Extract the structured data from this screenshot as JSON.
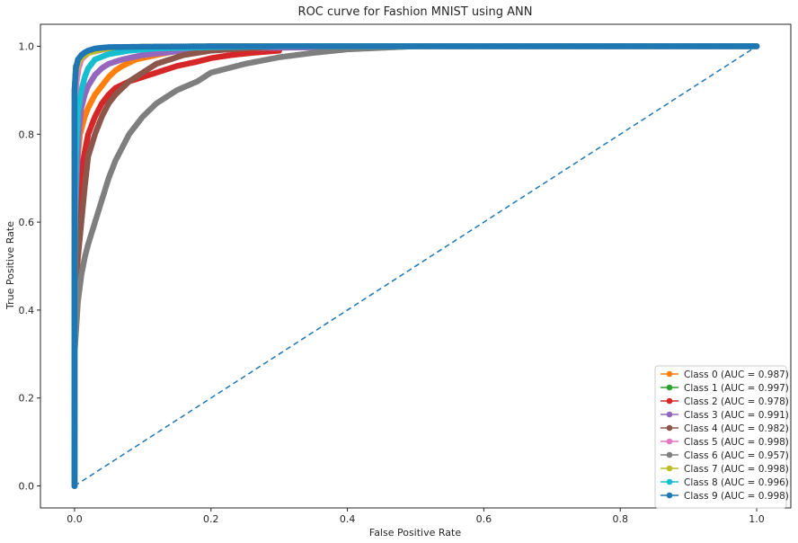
{
  "chart_data": {
    "type": "line",
    "title": "ROC curve for Fashion MNIST using ANN",
    "xlabel": "False Positive Rate",
    "ylabel": "True Positive Rate",
    "xlim": [
      -0.05,
      1.05
    ],
    "ylim": [
      -0.05,
      1.05
    ],
    "x_ticks": [
      "0.0",
      "0.2",
      "0.4",
      "0.6",
      "0.8",
      "1.0"
    ],
    "y_ticks": [
      "0.0",
      "0.2",
      "0.4",
      "0.6",
      "0.8",
      "1.0"
    ],
    "grid": false,
    "legend_position": "lower-right",
    "reference_line": {
      "style": "dashed",
      "color": "#1f77b4",
      "x": [
        0,
        1
      ],
      "y": [
        0,
        1
      ]
    },
    "series": [
      {
        "name": "Class 0 (AUC = 0.987)",
        "color": "#ff7f0e",
        "x": [
          0,
          0.0,
          0.003,
          0.008,
          0.015,
          0.02,
          0.03,
          0.04,
          0.05,
          0.06,
          0.07,
          0.09,
          0.12,
          0.15,
          0.2,
          0.3,
          0.5,
          0.68,
          1.0
        ],
        "y": [
          0,
          0.5,
          0.72,
          0.8,
          0.84,
          0.86,
          0.89,
          0.91,
          0.93,
          0.945,
          0.955,
          0.97,
          0.98,
          0.99,
          0.995,
          0.998,
          1.0,
          1.0,
          1.0
        ]
      },
      {
        "name": "Class 1 (AUC = 0.997)",
        "color": "#2ca02c",
        "x": [
          0,
          0.0,
          0.0,
          0.002,
          0.005,
          0.01,
          0.02,
          0.03,
          0.05,
          0.08,
          0.12,
          0.2,
          0.3,
          0.5,
          1.0
        ],
        "y": [
          0,
          0.6,
          0.9,
          0.955,
          0.965,
          0.975,
          0.985,
          0.99,
          0.995,
          0.997,
          0.999,
          1.0,
          1.0,
          1.0,
          1.0
        ]
      },
      {
        "name": "Class 2 (AUC = 0.978)",
        "color": "#d62728",
        "x": [
          0,
          0.0,
          0.003,
          0.008,
          0.015,
          0.02,
          0.03,
          0.04,
          0.05,
          0.06,
          0.08,
          0.1,
          0.12,
          0.15,
          0.18,
          0.2,
          0.23,
          0.26,
          0.3
        ],
        "y": [
          0,
          0.4,
          0.6,
          0.7,
          0.76,
          0.8,
          0.84,
          0.87,
          0.89,
          0.905,
          0.92,
          0.93,
          0.94,
          0.955,
          0.965,
          0.973,
          0.98,
          0.985,
          0.99
        ]
      },
      {
        "name": "Class 3 (AUC = 0.991)",
        "color": "#9467bd",
        "x": [
          0,
          0.0,
          0.003,
          0.006,
          0.01,
          0.015,
          0.02,
          0.03,
          0.04,
          0.05,
          0.07,
          0.1,
          0.13,
          0.16,
          0.2,
          0.5,
          0.7,
          1.0
        ],
        "y": [
          0,
          0.55,
          0.7,
          0.8,
          0.86,
          0.89,
          0.91,
          0.935,
          0.95,
          0.96,
          0.97,
          0.98,
          0.985,
          0.99,
          0.995,
          1.0,
          1.0,
          1.0
        ]
      },
      {
        "name": "Class 4 (AUC = 0.982)",
        "color": "#8c564b",
        "x": [
          0,
          0.0,
          0.005,
          0.01,
          0.015,
          0.02,
          0.03,
          0.04,
          0.05,
          0.06,
          0.08,
          0.1,
          0.12,
          0.14,
          0.16,
          0.2,
          0.3
        ],
        "y": [
          0,
          0.4,
          0.52,
          0.6,
          0.68,
          0.75,
          0.8,
          0.84,
          0.87,
          0.89,
          0.92,
          0.94,
          0.96,
          0.97,
          0.98,
          0.99,
          1.0
        ]
      },
      {
        "name": "Class 5 (AUC = 0.998)",
        "color": "#e377c2",
        "x": [
          0,
          0.0,
          0.0,
          0.003,
          0.006,
          0.01,
          0.02,
          0.04,
          0.08,
          0.2,
          0.5,
          0.94,
          1.0
        ],
        "y": [
          0,
          0.5,
          0.85,
          0.92,
          0.95,
          0.97,
          0.985,
          0.992,
          0.996,
          0.999,
          1.0,
          1.0,
          1.0
        ]
      },
      {
        "name": "Class 6 (AUC = 0.957)",
        "color": "#7f7f7f",
        "x": [
          0,
          0.0,
          0.005,
          0.01,
          0.015,
          0.02,
          0.03,
          0.04,
          0.05,
          0.06,
          0.08,
          0.1,
          0.12,
          0.15,
          0.18,
          0.2,
          0.25,
          0.3,
          0.35,
          0.4,
          0.5
        ],
        "y": [
          0,
          0.3,
          0.42,
          0.48,
          0.52,
          0.55,
          0.6,
          0.65,
          0.7,
          0.74,
          0.8,
          0.84,
          0.87,
          0.9,
          0.92,
          0.94,
          0.96,
          0.975,
          0.985,
          0.993,
          1.0
        ]
      },
      {
        "name": "Class 7 (AUC = 0.998)",
        "color": "#bcbd22",
        "x": [
          0,
          0.0,
          0.0,
          0.002,
          0.005,
          0.01,
          0.02,
          0.04,
          0.06,
          0.1,
          0.2,
          0.61,
          0.96,
          1.0
        ],
        "y": [
          0,
          0.6,
          0.9,
          0.94,
          0.96,
          0.975,
          0.985,
          0.993,
          0.997,
          0.999,
          1.0,
          1.0,
          1.0,
          1.0
        ]
      },
      {
        "name": "Class 8 (AUC = 0.996)",
        "color": "#17becf",
        "x": [
          0,
          0.0,
          0.002,
          0.005,
          0.01,
          0.015,
          0.02,
          0.03,
          0.05,
          0.08,
          0.12,
          0.2,
          0.3,
          0.55,
          1.0
        ],
        "y": [
          0,
          0.5,
          0.75,
          0.85,
          0.9,
          0.93,
          0.95,
          0.97,
          0.982,
          0.99,
          0.995,
          0.998,
          1.0,
          1.0,
          1.0
        ]
      },
      {
        "name": "Class 9 (AUC = 0.998)",
        "color": "#1f77b4",
        "x": [
          0,
          0.0,
          0.0,
          0.002,
          0.005,
          0.01,
          0.015,
          0.02,
          0.03,
          0.05,
          0.1,
          0.2,
          0.45,
          0.62,
          0.98,
          1.0
        ],
        "y": [
          0,
          0.5,
          0.9,
          0.95,
          0.97,
          0.98,
          0.986,
          0.99,
          0.995,
          0.998,
          0.999,
          1.0,
          1.0,
          1.0,
          1.0,
          1.0
        ]
      }
    ]
  }
}
